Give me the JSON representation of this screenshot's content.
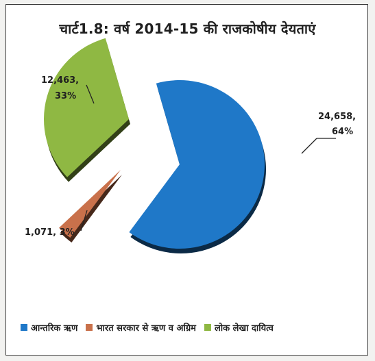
{
  "chart_data": {
    "type": "pie",
    "title": "चार्ट1.8: वर्ष 2014-15 की राजकोषीय देयताएं",
    "categories": [
      "आन्तरिक ऋण",
      "भारत सरकार से ऋण व अग्रिम",
      "लोक लेखा दायित्व"
    ],
    "values": [
      24658,
      1071,
      12463
    ],
    "percents": [
      64,
      3,
      33
    ],
    "data_labels": [
      "24,658, 64%",
      "1,071,  3%",
      "12,463, 33%"
    ],
    "colors": [
      "#1f78c8",
      "#c9714b",
      "#8fb843"
    ],
    "exploded": true,
    "legend_position": "bottom"
  }
}
